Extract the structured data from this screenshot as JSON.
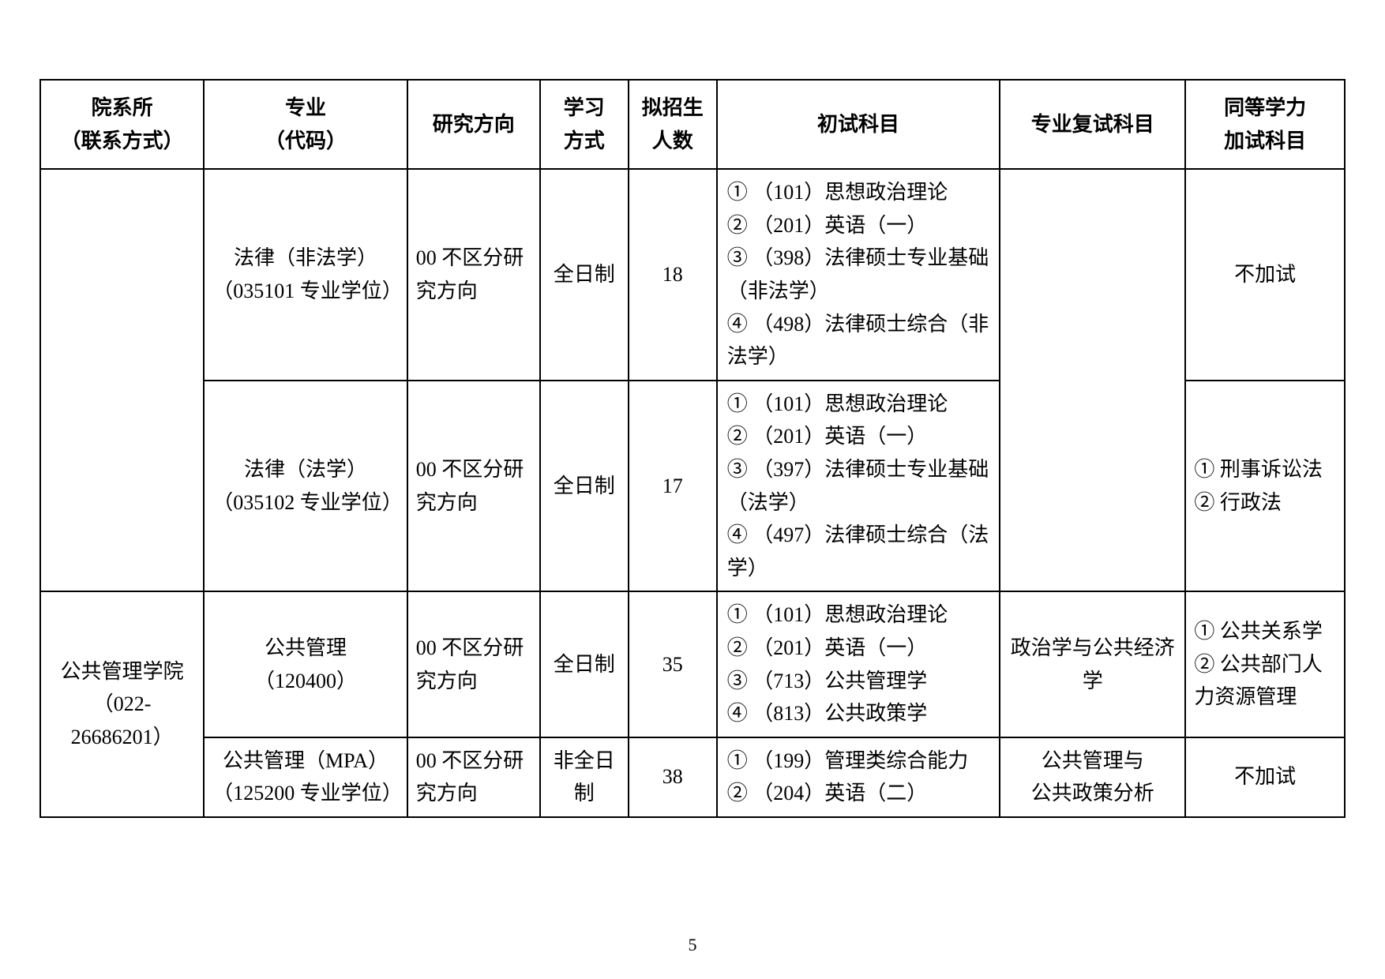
{
  "headers": {
    "dept": "院系所\n（联系方式）",
    "major": "专业\n（代码）",
    "direction": "研究方向",
    "mode": "学习\n方式",
    "quota": "拟招生\n人数",
    "prelim": "初试科目",
    "retest": "专业复试科目",
    "extra": "同等学力\n加试科目"
  },
  "rows": [
    {
      "dept": "",
      "major": "法律（非法学）\n（035101 专业学位）",
      "direction": "00 不区分研究方向",
      "mode": "全日制",
      "quota": "18",
      "prelim": [
        "① （101）思想政治理论",
        "② （201）英语（一）",
        "③ （398）法律硕士专业基础（非法学）",
        "④ （498）法律硕士综合（非法学）"
      ],
      "retest": "",
      "extra": "不加试"
    },
    {
      "dept": "",
      "major": "法律（法学）\n（035102 专业学位）",
      "direction": "00 不区分研究方向",
      "mode": "全日制",
      "quota": "17",
      "prelim": [
        "① （101）思想政治理论",
        "② （201）英语（一）",
        "③ （397）法律硕士专业基础（法学）",
        "④ （497）法律硕士综合（法学）"
      ],
      "retest": "",
      "extra": "① 刑事诉讼法\n② 行政法"
    },
    {
      "dept": "公共管理学院\n（022-26686201）",
      "major": "公共管理\n（120400）",
      "direction": "00 不区分研究方向",
      "mode": "全日制",
      "quota": "35",
      "prelim": [
        "① （101）思想政治理论",
        "② （201）英语（一）",
        "③ （713）公共管理学",
        "④ （813）公共政策学"
      ],
      "retest": "政治学与公共经济学",
      "extra": "① 公共关系学\n② 公共部门人力资源管理"
    },
    {
      "dept": "",
      "major": "公共管理（MPA）\n（125200 专业学位）",
      "direction": "00 不区分研究方向",
      "mode": "非全日制",
      "quota": "38",
      "prelim": [
        "① （199）管理类综合能力",
        "② （204）英语（二）"
      ],
      "retest": "公共管理与\n公共政策分析",
      "extra": "不加试"
    }
  ],
  "pageNumber": "5"
}
